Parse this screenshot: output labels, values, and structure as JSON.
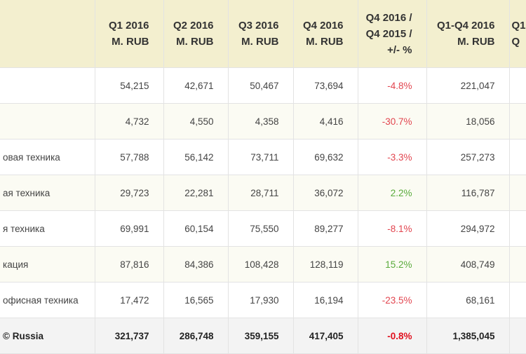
{
  "headers": [
    "",
    "Q1 2016\nM. RUB",
    "Q2 2016\nM. RUB",
    "Q3 2016\nM. RUB",
    "Q4 2016\nM. RUB",
    "Q4 2016 /\nQ4 2015 /\n+/- %",
    "Q1-Q4 2016\nM. RUB",
    "Q1\nQ"
  ],
  "rows": [
    {
      "label": "",
      "q1": "54,215",
      "q2": "42,671",
      "q3": "50,467",
      "q4": "73,694",
      "change": "-4.8%",
      "trend": "neg",
      "total": "221,047"
    },
    {
      "label": "",
      "q1": "4,732",
      "q2": "4,550",
      "q3": "4,358",
      "q4": "4,416",
      "change": "-30.7%",
      "trend": "neg",
      "total": "18,056"
    },
    {
      "label": "овая техника",
      "q1": "57,788",
      "q2": "56,142",
      "q3": "73,711",
      "q4": "69,632",
      "change": "-3.3%",
      "trend": "neg",
      "total": "257,273"
    },
    {
      "label": "ая техника",
      "q1": "29,723",
      "q2": "22,281",
      "q3": "28,711",
      "q4": "36,072",
      "change": "2.2%",
      "trend": "pos",
      "total": "116,787"
    },
    {
      "label": "я техника",
      "q1": "69,991",
      "q2": "60,154",
      "q3": "75,550",
      "q4": "89,277",
      "change": "-8.1%",
      "trend": "neg",
      "total": "294,972"
    },
    {
      "label": "кация",
      "q1": "87,816",
      "q2": "84,386",
      "q3": "108,428",
      "q4": "128,119",
      "change": "15.2%",
      "trend": "pos",
      "total": "408,749"
    },
    {
      "label": "офисная техника",
      "q1": "17,472",
      "q2": "16,565",
      "q3": "17,930",
      "q4": "16,194",
      "change": "-23.5%",
      "trend": "neg",
      "total": "68,161"
    },
    {
      "label": "© Russia",
      "q1": "321,737",
      "q2": "286,748",
      "q3": "359,155",
      "q4": "417,405",
      "change": "-0.8%",
      "trend": "neg",
      "total": "1,385,045"
    }
  ],
  "colors": {
    "header_bg": "#f3efcf",
    "alt_row_bg": "#fbfbf3",
    "total_bg": "#f3f3f3",
    "negative": "#e2454f",
    "positive": "#5aab3c"
  }
}
